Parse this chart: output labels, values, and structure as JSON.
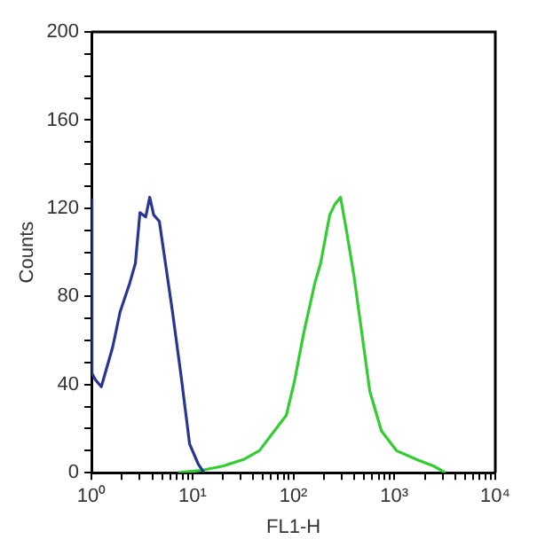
{
  "chart_data": {
    "type": "line",
    "xlabel": "FL1-H",
    "ylabel": "Counts",
    "log": "x",
    "grid": false,
    "legend": false,
    "marker": "none",
    "line_style": "solid",
    "xlim": [
      1,
      10000
    ],
    "ylim": [
      0,
      200
    ],
    "xticks": [
      {
        "value": 1,
        "label": "10⁰"
      },
      {
        "value": 2,
        "label": null
      },
      {
        "value": 3,
        "label": null
      },
      {
        "value": 4,
        "label": null
      },
      {
        "value": 5,
        "label": null
      },
      {
        "value": 6,
        "label": null
      },
      {
        "value": 7,
        "label": null
      },
      {
        "value": 8,
        "label": null
      },
      {
        "value": 9,
        "label": null
      },
      {
        "value": 10,
        "label": "10¹"
      },
      {
        "value": 20,
        "label": null
      },
      {
        "value": 30,
        "label": null
      },
      {
        "value": 40,
        "label": null
      },
      {
        "value": 50,
        "label": null
      },
      {
        "value": 60,
        "label": null
      },
      {
        "value": 70,
        "label": null
      },
      {
        "value": 80,
        "label": null
      },
      {
        "value": 90,
        "label": null
      },
      {
        "value": 100,
        "label": "10²"
      },
      {
        "value": 200,
        "label": null
      },
      {
        "value": 300,
        "label": null
      },
      {
        "value": 400,
        "label": null
      },
      {
        "value": 500,
        "label": null
      },
      {
        "value": 600,
        "label": null
      },
      {
        "value": 700,
        "label": null
      },
      {
        "value": 800,
        "label": null
      },
      {
        "value": 900,
        "label": null
      },
      {
        "value": 1000,
        "label": "10³"
      },
      {
        "value": 2000,
        "label": null
      },
      {
        "value": 3000,
        "label": null
      },
      {
        "value": 4000,
        "label": null
      },
      {
        "value": 5000,
        "label": null
      },
      {
        "value": 6000,
        "label": null
      },
      {
        "value": 7000,
        "label": null
      },
      {
        "value": 8000,
        "label": null
      },
      {
        "value": 9000,
        "label": null
      },
      {
        "value": 10000,
        "label": "10⁴"
      }
    ],
    "yticks": [
      0,
      {
        "value": 10,
        "label": null
      },
      {
        "value": 20,
        "label": null
      },
      {
        "value": 30,
        "label": null
      },
      40,
      {
        "value": 50,
        "label": null
      },
      {
        "value": 60,
        "label": null
      },
      {
        "value": 70,
        "label": null
      },
      80,
      {
        "value": 90,
        "label": null
      },
      {
        "value": 100,
        "label": null
      },
      {
        "value": 110,
        "label": null
      },
      120,
      {
        "value": 130,
        "label": null
      },
      {
        "value": 140,
        "label": null
      },
      {
        "value": 150,
        "label": null
      },
      160,
      {
        "value": 170,
        "label": null
      },
      {
        "value": 180,
        "label": null
      },
      {
        "value": 190,
        "label": null
      },
      200
    ],
    "series": [
      {
        "color": "#283593",
        "x": [
          1,
          1.01,
          1.1,
          1.25,
          1.62,
          1.92,
          2.39,
          2.72,
          3.02,
          3.44,
          3.77,
          4.13,
          4.7,
          5.36,
          6.34,
          7.71,
          9.37,
          11.4,
          13
        ],
        "values": [
          124,
          45,
          42,
          39,
          57,
          73,
          86,
          95,
          118,
          116,
          125,
          117,
          114,
          96,
          73,
          44,
          13,
          4,
          0
        ]
      },
      {
        "color": "#33cc33",
        "x": [
          7.2,
          12,
          20,
          32,
          46,
          60,
          85,
          103,
          126,
          163,
          186,
          229,
          259,
          293,
          338,
          399,
          471,
          571,
          744,
          1050,
          1660,
          2460,
          3200
        ],
        "values": [
          0,
          1,
          3,
          6,
          10,
          17,
          26,
          42,
          63,
          86,
          95,
          117,
          122,
          125,
          109,
          89,
          65,
          37,
          19,
          10,
          6,
          3,
          0
        ]
      }
    ]
  }
}
